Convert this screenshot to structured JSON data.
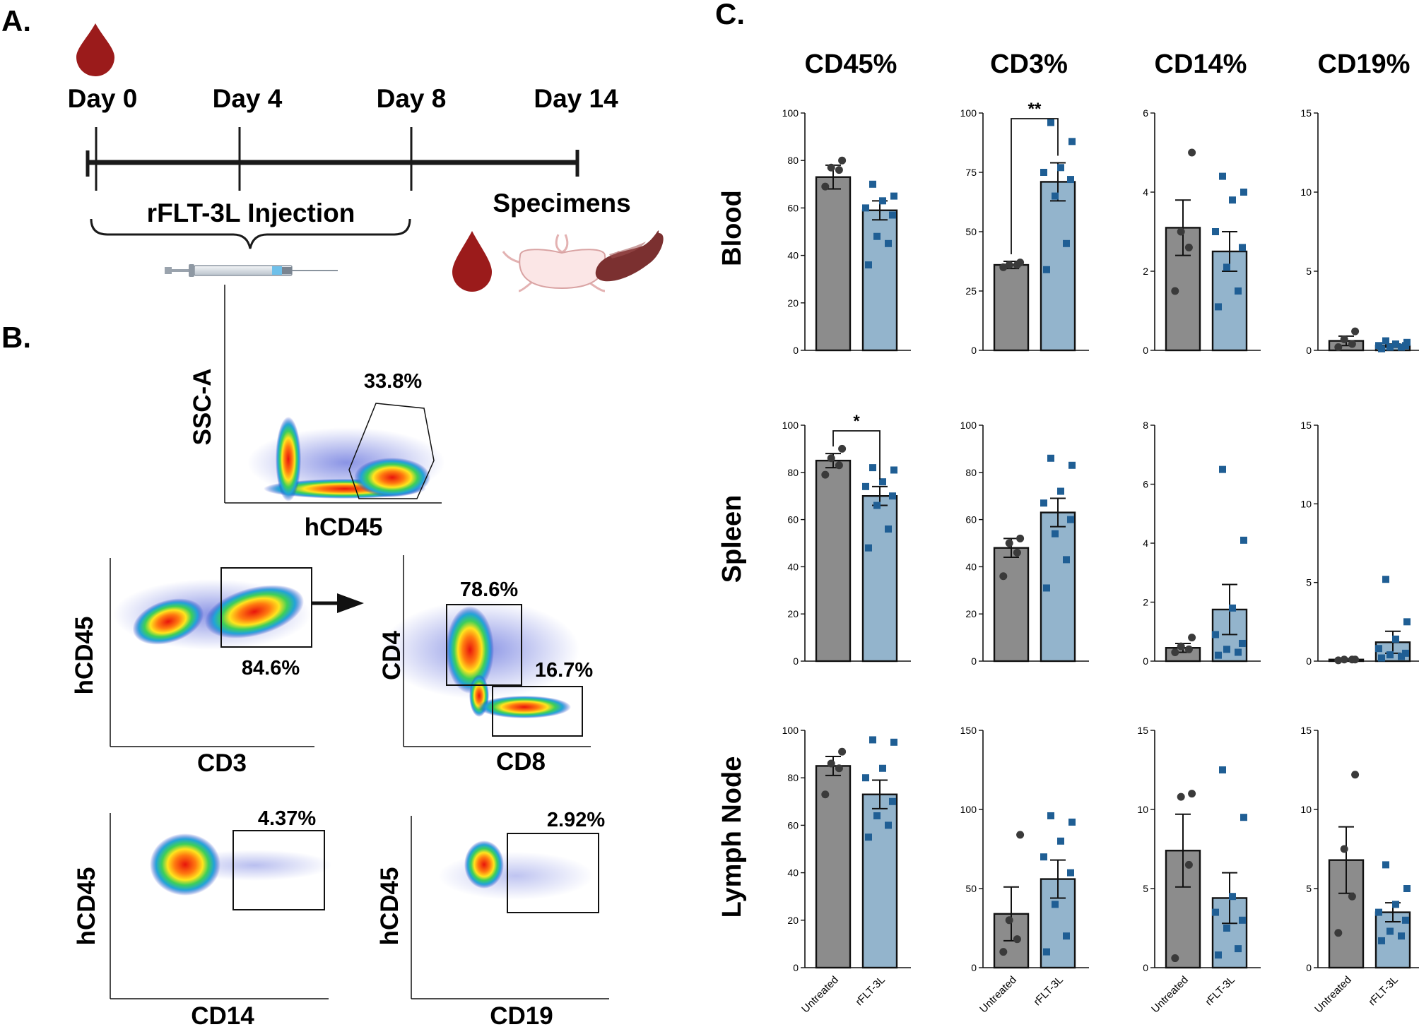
{
  "panels": {
    "a": "A.",
    "b": "B.",
    "c": "C."
  },
  "timeline": {
    "days": [
      "Day 0",
      "Day 4",
      "Day 8",
      "Day 14"
    ],
    "injection_label": "rFLT-3L Injection",
    "specimens_label": "Specimens"
  },
  "flow": [
    {
      "xlabel": "hCD45",
      "ylabel": "SSC-A",
      "gates": [
        "33.8%"
      ]
    },
    {
      "xlabel": "CD3",
      "ylabel": "hCD45",
      "gates": [
        "84.6%"
      ]
    },
    {
      "xlabel": "CD8",
      "ylabel": "CD4",
      "gates": [
        "78.6%",
        "16.7%"
      ]
    },
    {
      "xlabel": "CD14",
      "ylabel": "hCD45",
      "gates": [
        "4.37%"
      ]
    },
    {
      "xlabel": "CD19",
      "ylabel": "hCD45",
      "gates": [
        "2.92%"
      ]
    }
  ],
  "colors": {
    "untreated_bar": "#8c8c8c",
    "treated_bar": "#93b4cc",
    "untreated_point": "#3a3a3a",
    "treated_point": "#1f5e94",
    "blood": "#9b1b1b",
    "spleen": "#7b3030"
  },
  "chart_data": [
    {
      "type": "bar",
      "title": "CD45%",
      "row_label": "Blood",
      "categories": [
        "Untreated",
        "rFLT-3L"
      ],
      "yticks": [
        0,
        20,
        40,
        60,
        80,
        100
      ],
      "ylim": [
        0,
        100
      ],
      "values": [
        73,
        59
      ],
      "errors": [
        5,
        4
      ],
      "points": [
        [
          69,
          76,
          77,
          80
        ],
        [
          36,
          45,
          48,
          57,
          60,
          63,
          65,
          70
        ]
      ],
      "significance": ""
    },
    {
      "type": "bar",
      "title": "CD3%",
      "row_label": "Blood",
      "categories": [
        "Untreated",
        "rFLT-3L"
      ],
      "yticks": [
        0,
        25,
        50,
        75,
        100
      ],
      "ylim": [
        0,
        100
      ],
      "values": [
        36,
        71
      ],
      "errors": [
        1.5,
        8
      ],
      "points": [
        [
          35,
          36,
          36,
          37
        ],
        [
          34,
          45,
          65,
          72,
          75,
          77,
          88,
          96
        ]
      ],
      "significance": "**"
    },
    {
      "type": "bar",
      "title": "CD14%",
      "row_label": "Blood",
      "categories": [
        "Untreated",
        "rFLT-3L"
      ],
      "yticks": [
        0,
        2,
        4,
        6
      ],
      "ylim": [
        0,
        6
      ],
      "values": [
        3.1,
        2.5
      ],
      "errors": [
        0.7,
        0.5
      ],
      "points": [
        [
          1.5,
          2.6,
          3.0,
          5.0
        ],
        [
          1.1,
          1.5,
          2.1,
          2.6,
          3.0,
          3.8,
          4.0,
          4.4
        ]
      ],
      "significance": ""
    },
    {
      "type": "bar",
      "title": "CD19%",
      "row_label": "Blood",
      "categories": [
        "Untreated",
        "rFLT-3L"
      ],
      "yticks": [
        0,
        5,
        10,
        15
      ],
      "ylim": [
        0,
        15
      ],
      "values": [
        0.6,
        0.3
      ],
      "errors": [
        0.3,
        0.1
      ],
      "points": [
        [
          0.2,
          0.4,
          0.7,
          1.2
        ],
        [
          0.1,
          0.2,
          0.2,
          0.3,
          0.3,
          0.4,
          0.5,
          0.6
        ]
      ],
      "significance": ""
    },
    {
      "type": "bar",
      "row_label": "Spleen",
      "categories": [
        "Untreated",
        "rFLT-3L"
      ],
      "yticks": [
        0,
        20,
        40,
        60,
        80,
        100
      ],
      "ylim": [
        0,
        100
      ],
      "values": [
        85,
        70
      ],
      "errors": [
        3,
        4
      ],
      "points": [
        [
          79,
          83,
          86,
          90
        ],
        [
          48,
          56,
          66,
          70,
          74,
          76,
          81,
          82
        ]
      ],
      "significance": "*"
    },
    {
      "type": "bar",
      "row_label": "Spleen",
      "categories": [
        "Untreated",
        "rFLT-3L"
      ],
      "yticks": [
        0,
        20,
        40,
        60,
        80,
        100
      ],
      "ylim": [
        0,
        100
      ],
      "values": [
        48,
        63
      ],
      "errors": [
        4,
        6
      ],
      "points": [
        [
          36,
          46,
          50,
          52
        ],
        [
          31,
          43,
          54,
          60,
          67,
          72,
          83,
          86
        ]
      ],
      "significance": ""
    },
    {
      "type": "bar",
      "row_label": "Spleen",
      "categories": [
        "Untreated",
        "rFLT-3L"
      ],
      "yticks": [
        0,
        2,
        4,
        6,
        8
      ],
      "ylim": [
        0,
        8
      ],
      "values": [
        0.45,
        1.75
      ],
      "errors": [
        0.15,
        0.85
      ],
      "points": [
        [
          0.3,
          0.4,
          0.5,
          0.8
        ],
        [
          0.2,
          0.3,
          0.4,
          0.6,
          0.9,
          1.8,
          4.1,
          6.5
        ]
      ],
      "significance": ""
    },
    {
      "type": "bar",
      "row_label": "Spleen",
      "categories": [
        "Untreated",
        "rFLT-3L"
      ],
      "yticks": [
        0,
        5,
        10,
        15
      ],
      "ylim": [
        0,
        15
      ],
      "values": [
        0.1,
        1.2
      ],
      "errors": [
        0.05,
        0.7
      ],
      "points": [
        [
          0.05,
          0.1,
          0.1,
          0.1
        ],
        [
          0.2,
          0.3,
          0.4,
          0.5,
          0.8,
          1.4,
          2.5,
          5.2
        ]
      ],
      "significance": ""
    },
    {
      "type": "bar",
      "row_label": "Lymph Node",
      "categories": [
        "Untreated",
        "rFLT-3L"
      ],
      "yticks": [
        0,
        20,
        40,
        60,
        80,
        100
      ],
      "ylim": [
        0,
        100
      ],
      "values": [
        85,
        73
      ],
      "errors": [
        4,
        6
      ],
      "points": [
        [
          73,
          84,
          86,
          91
        ],
        [
          55,
          60,
          64,
          70,
          80,
          84,
          95,
          96
        ]
      ],
      "significance": ""
    },
    {
      "type": "bar",
      "row_label": "Lymph Node",
      "categories": [
        "Untreated",
        "rFLT-3L"
      ],
      "yticks": [
        0,
        50,
        100,
        150
      ],
      "ylim": [
        0,
        150
      ],
      "values": [
        34,
        56
      ],
      "errors": [
        17,
        12
      ],
      "points": [
        [
          10,
          18,
          30,
          84
        ],
        [
          10,
          20,
          40,
          60,
          70,
          80,
          92,
          96
        ]
      ],
      "significance": ""
    },
    {
      "type": "bar",
      "row_label": "Lymph Node",
      "categories": [
        "Untreated",
        "rFLT-3L"
      ],
      "yticks": [
        0,
        5,
        10,
        15
      ],
      "ylim": [
        0,
        15
      ],
      "values": [
        7.4,
        4.4
      ],
      "errors": [
        2.3,
        1.6
      ],
      "points": [
        [
          0.6,
          6.5,
          10.8,
          11.0
        ],
        [
          0.8,
          1.2,
          2.5,
          3.0,
          3.5,
          4.5,
          9.5,
          12.5
        ]
      ],
      "significance": ""
    },
    {
      "type": "bar",
      "row_label": "Lymph Node",
      "categories": [
        "Untreated",
        "rFLT-3L"
      ],
      "yticks": [
        0,
        5,
        10,
        15
      ],
      "ylim": [
        0,
        15
      ],
      "values": [
        6.8,
        3.5
      ],
      "errors": [
        2.1,
        0.6
      ],
      "points": [
        [
          2.2,
          4.5,
          7.5,
          12.2
        ],
        [
          1.7,
          2.0,
          2.3,
          3.0,
          3.5,
          4.0,
          5.0,
          6.5
        ]
      ],
      "significance": ""
    }
  ]
}
